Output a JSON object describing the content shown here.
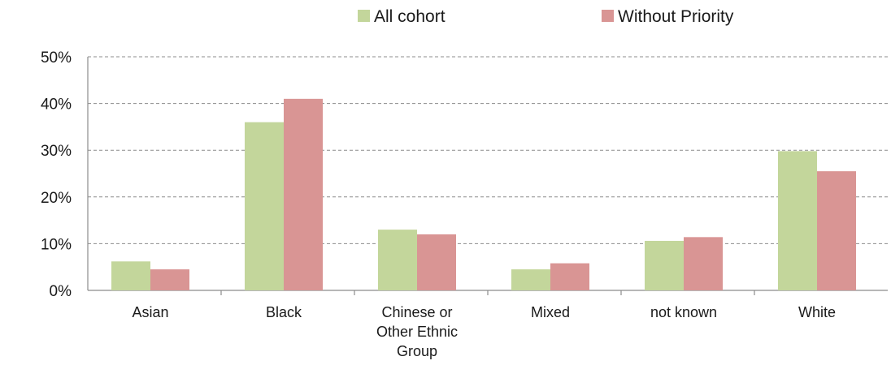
{
  "chart_data": {
    "type": "bar",
    "title": "",
    "xlabel": "",
    "ylabel": "",
    "ylim": [
      0,
      50
    ],
    "yticks": [
      "0%",
      "10%",
      "20%",
      "30%",
      "40%",
      "50%"
    ],
    "grid": true,
    "legend_position": "top",
    "categories": [
      [
        "Asian"
      ],
      [
        "Black"
      ],
      [
        "Chinese or",
        "Other Ethnic",
        "Group"
      ],
      [
        "Mixed"
      ],
      [
        "not known"
      ],
      [
        "White"
      ]
    ],
    "series": [
      {
        "name": "All cohort",
        "color": "#c3d69b",
        "values": [
          6.2,
          36,
          13,
          4.5,
          10.6,
          29.8
        ]
      },
      {
        "name": "Without Priority",
        "color": "#d99594",
        "values": [
          4.5,
          41,
          12,
          5.8,
          11.4,
          25.5
        ]
      }
    ]
  }
}
